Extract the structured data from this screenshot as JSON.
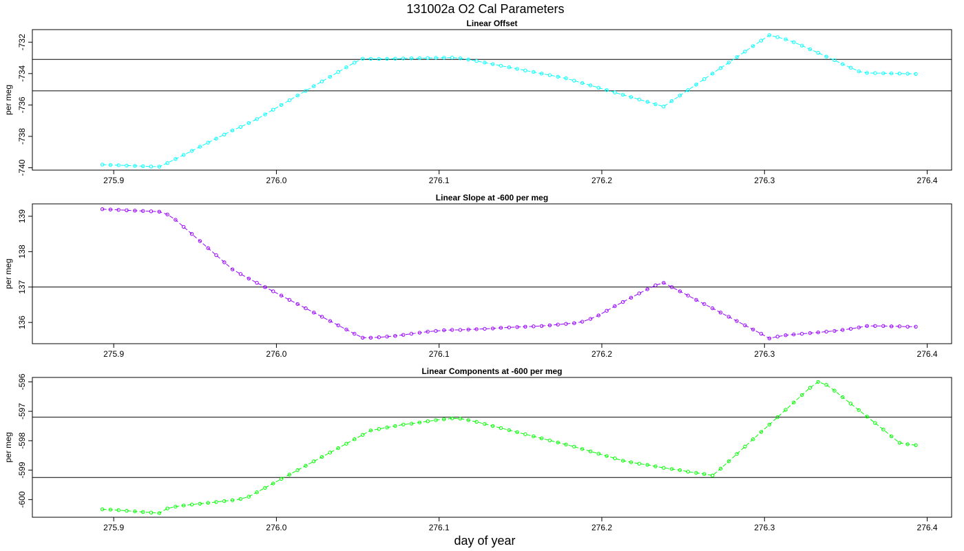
{
  "figure": {
    "title": "131002a   O2 Cal Parameters",
    "xlabel": "day of year"
  },
  "chart_data": [
    {
      "type": "line",
      "title": "Linear Offset",
      "ylabel": "per meg",
      "color": "#00ffff",
      "xlim": [
        275.85,
        276.415
      ],
      "ylim": [
        -740.15,
        -731.2
      ],
      "xticks": [
        "275.9",
        "276.0",
        "276.1",
        "276.2",
        "276.3",
        "276.4"
      ],
      "yticks": [
        "-740",
        "-738",
        "-736",
        "-734",
        "-732"
      ],
      "hlines": [
        -733.1,
        -735.1
      ],
      "series": [
        {
          "x": [
            275.893,
            275.898,
            275.903,
            275.908,
            275.913,
            275.918,
            275.923,
            275.928,
            275.933,
            275.938,
            275.943,
            275.948,
            275.953,
            275.958,
            275.963,
            275.968,
            275.973,
            275.978,
            275.983,
            275.988,
            275.993,
            275.998,
            276.003,
            276.008,
            276.013,
            276.018,
            276.023,
            276.028,
            276.033,
            276.038,
            276.043,
            276.048,
            276.053,
            276.058,
            276.063,
            276.068,
            276.073,
            276.078,
            276.083,
            276.088,
            276.093,
            276.098,
            276.103,
            276.108,
            276.113,
            276.118,
            276.123,
            276.128,
            276.133,
            276.138,
            276.143,
            276.148,
            276.153,
            276.158,
            276.163,
            276.168,
            276.173,
            276.178,
            276.183,
            276.188,
            276.193,
            276.198,
            276.203,
            276.208,
            276.213,
            276.218,
            276.223,
            276.228,
            276.233,
            276.238,
            276.243,
            276.248,
            276.253,
            276.258,
            276.263,
            276.268,
            276.273,
            276.278,
            276.283,
            276.288,
            276.293,
            276.298,
            276.303,
            276.308,
            276.313,
            276.318,
            276.323,
            276.328,
            276.333,
            276.338,
            276.343,
            276.348,
            276.353,
            276.358,
            276.363,
            276.368,
            276.373,
            276.378,
            276.383,
            276.388,
            276.393
          ],
          "y": [
            -739.8,
            -739.82,
            -739.84,
            -739.86,
            -739.88,
            -739.9,
            -739.92,
            -739.93,
            -739.7,
            -739.44,
            -739.18,
            -738.92,
            -738.66,
            -738.4,
            -738.14,
            -737.88,
            -737.62,
            -737.4,
            -737.15,
            -736.9,
            -736.6,
            -736.3,
            -736.0,
            -735.7,
            -735.4,
            -735.1,
            -734.8,
            -734.5,
            -734.2,
            -733.9,
            -733.6,
            -733.3,
            -733.05,
            -733.06,
            -733.07,
            -733.06,
            -733.05,
            -733.04,
            -733.03,
            -733.02,
            -733.01,
            -733.0,
            -732.99,
            -732.98,
            -733.03,
            -733.1,
            -733.2,
            -733.3,
            -733.4,
            -733.5,
            -733.6,
            -733.7,
            -733.8,
            -733.9,
            -734.0,
            -734.1,
            -734.2,
            -734.3,
            -734.45,
            -734.6,
            -734.75,
            -734.9,
            -735.05,
            -735.2,
            -735.35,
            -735.5,
            -735.65,
            -735.8,
            -735.95,
            -736.1,
            -735.75,
            -735.4,
            -735.05,
            -734.7,
            -734.35,
            -734.0,
            -733.65,
            -733.3,
            -732.95,
            -732.6,
            -732.25,
            -731.9,
            -731.55,
            -731.68,
            -731.82,
            -732.0,
            -732.22,
            -732.45,
            -732.68,
            -732.92,
            -733.15,
            -733.4,
            -733.62,
            -733.86,
            -733.96,
            -733.97,
            -733.98,
            -733.99,
            -734.0,
            -734.01,
            -734.02
          ]
        }
      ]
    },
    {
      "type": "line",
      "title": "Linear Slope at -600 per meg",
      "ylabel": "per meg",
      "color": "#9900ff",
      "xlim": [
        275.85,
        276.415
      ],
      "ylim": [
        135.4,
        139.35
      ],
      "xticks": [
        "275.9",
        "276.0",
        "276.1",
        "276.2",
        "276.3",
        "276.4"
      ],
      "yticks": [
        "136",
        "137",
        "138",
        "139"
      ],
      "hlines": [
        137.0
      ],
      "series": [
        {
          "x": [
            275.893,
            275.898,
            275.903,
            275.908,
            275.913,
            275.918,
            275.923,
            275.928,
            275.933,
            275.938,
            275.943,
            275.948,
            275.953,
            275.958,
            275.963,
            275.968,
            275.973,
            275.978,
            275.983,
            275.988,
            275.993,
            275.998,
            276.003,
            276.008,
            276.013,
            276.018,
            276.023,
            276.028,
            276.033,
            276.038,
            276.043,
            276.048,
            276.053,
            276.058,
            276.063,
            276.068,
            276.073,
            276.078,
            276.083,
            276.088,
            276.093,
            276.098,
            276.103,
            276.108,
            276.113,
            276.118,
            276.123,
            276.128,
            276.133,
            276.138,
            276.143,
            276.148,
            276.153,
            276.158,
            276.163,
            276.168,
            276.173,
            276.178,
            276.183,
            276.188,
            276.193,
            276.198,
            276.203,
            276.208,
            276.213,
            276.218,
            276.223,
            276.228,
            276.233,
            276.238,
            276.243,
            276.248,
            276.253,
            276.258,
            276.263,
            276.268,
            276.273,
            276.278,
            276.283,
            276.288,
            276.293,
            276.298,
            276.303,
            276.308,
            276.313,
            276.318,
            276.323,
            276.328,
            276.333,
            276.338,
            276.343,
            276.348,
            276.353,
            276.358,
            276.363,
            276.368,
            276.373,
            276.378,
            276.383,
            276.388,
            276.393
          ],
          "y": [
            139.2,
            139.19,
            139.18,
            139.17,
            139.16,
            139.15,
            139.14,
            139.13,
            139.05,
            138.9,
            138.7,
            138.5,
            138.3,
            138.1,
            137.9,
            137.7,
            137.5,
            137.37,
            137.24,
            137.12,
            137.0,
            136.88,
            136.76,
            136.64,
            136.52,
            136.4,
            136.28,
            136.16,
            136.04,
            135.92,
            135.8,
            135.68,
            135.57,
            135.57,
            135.58,
            135.6,
            135.62,
            135.65,
            135.68,
            135.71,
            135.74,
            135.76,
            135.78,
            135.79,
            135.79,
            135.8,
            135.81,
            135.82,
            135.83,
            135.85,
            135.86,
            135.87,
            135.88,
            135.89,
            135.9,
            135.92,
            135.94,
            135.96,
            135.98,
            136.02,
            136.1,
            136.2,
            136.33,
            136.46,
            136.58,
            136.7,
            136.82,
            136.94,
            137.05,
            137.12,
            137.0,
            136.88,
            136.76,
            136.64,
            136.52,
            136.4,
            136.28,
            136.16,
            136.04,
            135.92,
            135.8,
            135.68,
            135.55,
            135.6,
            135.64,
            135.66,
            135.68,
            135.7,
            135.72,
            135.74,
            135.76,
            135.79,
            135.82,
            135.86,
            135.9,
            135.9,
            135.9,
            135.89,
            135.89,
            135.88,
            135.88
          ]
        }
      ]
    },
    {
      "type": "line",
      "title": "Linear Components at -600 per meg",
      "ylabel": "per meg",
      "color": "#00ff00",
      "xlim": [
        275.85,
        276.415
      ],
      "ylim": [
        -600.6,
        -595.85
      ],
      "xticks": [
        "275.9",
        "276.0",
        "276.1",
        "276.2",
        "276.3",
        "276.4"
      ],
      "yticks": [
        "-600",
        "-599",
        "-598",
        "-597",
        "-596"
      ],
      "hlines": [
        -597.2,
        -599.25
      ],
      "series": [
        {
          "x": [
            275.893,
            275.898,
            275.903,
            275.908,
            275.913,
            275.918,
            275.923,
            275.928,
            275.933,
            275.938,
            275.943,
            275.948,
            275.953,
            275.958,
            275.963,
            275.968,
            275.973,
            275.978,
            275.983,
            275.988,
            275.993,
            275.998,
            276.003,
            276.008,
            276.013,
            276.018,
            276.023,
            276.028,
            276.033,
            276.038,
            276.043,
            276.048,
            276.053,
            276.058,
            276.063,
            276.068,
            276.073,
            276.078,
            276.083,
            276.088,
            276.093,
            276.098,
            276.103,
            276.108,
            276.113,
            276.118,
            276.123,
            276.128,
            276.133,
            276.138,
            276.143,
            276.148,
            276.153,
            276.158,
            276.163,
            276.168,
            276.173,
            276.178,
            276.183,
            276.188,
            276.193,
            276.198,
            276.203,
            276.208,
            276.213,
            276.218,
            276.223,
            276.228,
            276.233,
            276.238,
            276.243,
            276.248,
            276.253,
            276.258,
            276.263,
            276.268,
            276.273,
            276.278,
            276.283,
            276.288,
            276.293,
            276.298,
            276.303,
            276.308,
            276.313,
            276.318,
            276.323,
            276.328,
            276.333,
            276.338,
            276.343,
            276.348,
            276.353,
            276.358,
            276.363,
            276.368,
            276.373,
            276.378,
            276.383,
            276.388,
            276.393
          ],
          "y": [
            -600.33,
            -600.34,
            -600.36,
            -600.38,
            -600.4,
            -600.42,
            -600.44,
            -600.46,
            -600.3,
            -600.24,
            -600.2,
            -600.17,
            -600.14,
            -600.11,
            -600.08,
            -600.05,
            -600.02,
            -599.98,
            -599.9,
            -599.75,
            -599.6,
            -599.45,
            -599.3,
            -599.15,
            -599.0,
            -598.85,
            -598.7,
            -598.55,
            -598.4,
            -598.25,
            -598.1,
            -597.95,
            -597.8,
            -597.65,
            -597.6,
            -597.55,
            -597.5,
            -597.45,
            -597.42,
            -597.38,
            -597.34,
            -597.3,
            -597.27,
            -597.24,
            -597.25,
            -597.3,
            -597.36,
            -597.43,
            -597.5,
            -597.57,
            -597.64,
            -597.71,
            -597.78,
            -597.85,
            -597.92,
            -597.99,
            -598.06,
            -598.13,
            -598.2,
            -598.28,
            -598.36,
            -598.44,
            -598.52,
            -598.6,
            -598.68,
            -598.73,
            -598.78,
            -598.82,
            -598.87,
            -598.92,
            -598.96,
            -599.0,
            -599.05,
            -599.09,
            -599.13,
            -599.18,
            -598.95,
            -598.7,
            -598.45,
            -598.2,
            -597.95,
            -597.7,
            -597.45,
            -597.2,
            -596.95,
            -596.7,
            -596.45,
            -596.2,
            -596.0,
            -596.1,
            -596.3,
            -596.52,
            -596.74,
            -596.96,
            -597.18,
            -597.4,
            -597.62,
            -597.85,
            -598.07,
            -598.12,
            -598.15
          ]
        }
      ]
    }
  ]
}
